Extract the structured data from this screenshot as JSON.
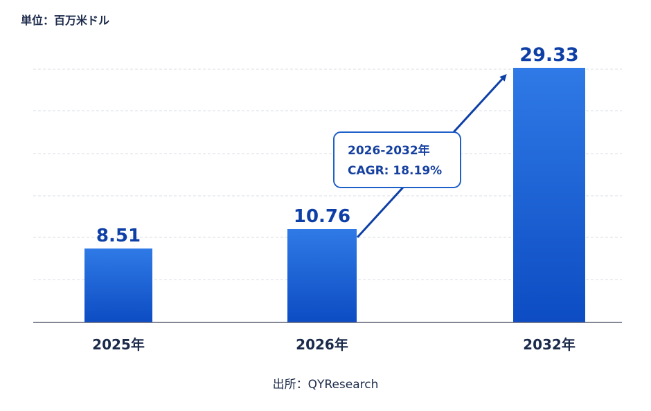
{
  "unit_label": "単位：百万米ドル",
  "source_label": "出所：QYResearch",
  "colors": {
    "bar_top": "#2f7ae6",
    "bar_bottom": "#0d4cc3",
    "value_text": "#0d3fa6",
    "axis_text": "#1b2a4a",
    "arrow": "#0d3fa6",
    "grid": "#d9dde5"
  },
  "chart_data": {
    "type": "bar",
    "categories": [
      "2025年",
      "2026年",
      "2032年"
    ],
    "values": [
      8.51,
      10.76,
      29.33
    ],
    "value_labels": [
      "8.51",
      "10.76",
      "29.33"
    ],
    "ylim": [
      0,
      30
    ],
    "grid": true,
    "annotation": {
      "line1": "2026-2032年",
      "line2": "CAGR: 18.19%"
    }
  }
}
